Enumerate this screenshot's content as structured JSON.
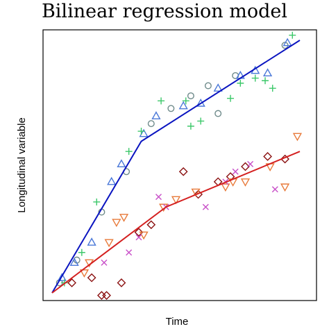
{
  "chart_data": {
    "type": "scatter",
    "title": "Bilinear regression model",
    "xlabel": "Time",
    "ylabel": "Longitudinal variable",
    "xlim": [
      0,
      1
    ],
    "ylim": [
      0,
      1
    ],
    "ticks_shown": false,
    "grid": false,
    "legend": "none",
    "fitted_lines": [
      {
        "color": "#0a14c0",
        "points": [
          [
            0.0,
            0.0
          ],
          [
            0.36,
            0.6
          ],
          [
            1.0,
            1.0
          ]
        ]
      },
      {
        "color": "#d42020",
        "points": [
          [
            0.0,
            0.0
          ],
          [
            0.46,
            0.34
          ],
          [
            1.0,
            0.56
          ]
        ]
      }
    ],
    "series": [
      {
        "marker": "circle",
        "color": "#6e8a8a",
        "points": [
          [
            0.03,
            0.04
          ],
          [
            0.1,
            0.13
          ],
          [
            0.2,
            0.32
          ],
          [
            0.3,
            0.48
          ],
          [
            0.4,
            0.67
          ],
          [
            0.48,
            0.73
          ],
          [
            0.56,
            0.78
          ],
          [
            0.63,
            0.82
          ],
          [
            0.67,
            0.71
          ],
          [
            0.74,
            0.86
          ],
          [
            0.94,
            0.98
          ]
        ]
      },
      {
        "marker": "triangle",
        "color": "#4a78d8",
        "points": [
          [
            0.04,
            0.06
          ],
          [
            0.09,
            0.12
          ],
          [
            0.16,
            0.2
          ],
          [
            0.24,
            0.44
          ],
          [
            0.28,
            0.51
          ],
          [
            0.37,
            0.63
          ],
          [
            0.42,
            0.7
          ],
          [
            0.53,
            0.74
          ],
          [
            0.6,
            0.75
          ],
          [
            0.67,
            0.81
          ],
          [
            0.76,
            0.86
          ],
          [
            0.82,
            0.88
          ],
          [
            0.87,
            0.87
          ],
          [
            0.95,
            0.99
          ]
        ]
      },
      {
        "marker": "plus",
        "color": "#3cc86a",
        "points": [
          [
            0.05,
            0.04
          ],
          [
            0.12,
            0.16
          ],
          [
            0.18,
            0.36
          ],
          [
            0.31,
            0.56
          ],
          [
            0.36,
            0.64
          ],
          [
            0.44,
            0.76
          ],
          [
            0.54,
            0.76
          ],
          [
            0.56,
            0.66
          ],
          [
            0.6,
            0.68
          ],
          [
            0.72,
            0.77
          ],
          [
            0.76,
            0.83
          ],
          [
            0.82,
            0.85
          ],
          [
            0.86,
            0.84
          ],
          [
            0.89,
            0.81
          ],
          [
            0.97,
            1.02
          ]
        ]
      },
      {
        "marker": "diamond",
        "color": "#8a1010",
        "points": [
          [
            0.08,
            0.04
          ],
          [
            0.16,
            0.06
          ],
          [
            0.2,
            -0.01
          ],
          [
            0.22,
            -0.01
          ],
          [
            0.28,
            0.04
          ],
          [
            0.35,
            0.24
          ],
          [
            0.4,
            0.27
          ],
          [
            0.53,
            0.48
          ],
          [
            0.59,
            0.39
          ],
          [
            0.67,
            0.44
          ],
          [
            0.72,
            0.46
          ],
          [
            0.78,
            0.5
          ],
          [
            0.87,
            0.54
          ],
          [
            0.94,
            0.53
          ]
        ]
      },
      {
        "marker": "triangle-down",
        "color": "#e87a3a",
        "points": [
          [
            0.13,
            0.08
          ],
          [
            0.15,
            0.12
          ],
          [
            0.23,
            0.2
          ],
          [
            0.26,
            0.28
          ],
          [
            0.29,
            0.3
          ],
          [
            0.37,
            0.23
          ],
          [
            0.45,
            0.34
          ],
          [
            0.5,
            0.37
          ],
          [
            0.58,
            0.4
          ],
          [
            0.7,
            0.42
          ],
          [
            0.73,
            0.44
          ],
          [
            0.78,
            0.44
          ],
          [
            0.88,
            0.5
          ],
          [
            0.94,
            0.42
          ],
          [
            0.99,
            0.62
          ]
        ]
      },
      {
        "marker": "x",
        "color": "#c84fc8",
        "points": [
          [
            0.21,
            0.12
          ],
          [
            0.31,
            0.16
          ],
          [
            0.35,
            0.22
          ],
          [
            0.43,
            0.38
          ],
          [
            0.46,
            0.34
          ],
          [
            0.62,
            0.34
          ],
          [
            0.7,
            0.44
          ],
          [
            0.74,
            0.48
          ],
          [
            0.8,
            0.51
          ],
          [
            0.9,
            0.41
          ]
        ]
      }
    ]
  }
}
